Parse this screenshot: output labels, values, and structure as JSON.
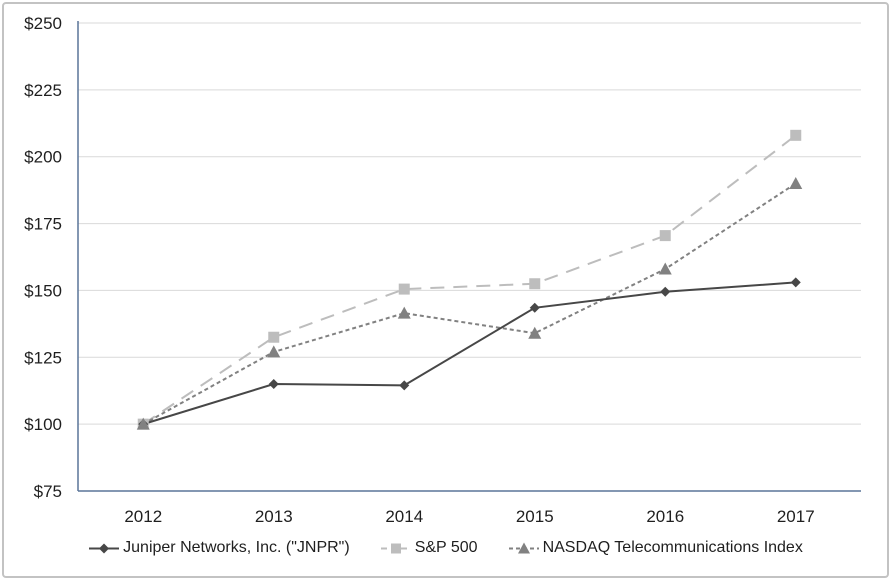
{
  "figure": {
    "background": "#ffffff",
    "border_color": "#c3c3c3"
  },
  "chart_data": {
    "type": "line",
    "title": "",
    "xlabel": "",
    "ylabel": "",
    "categories": [
      "2012",
      "2013",
      "2014",
      "2015",
      "2016",
      "2017"
    ],
    "series": [
      {
        "name": "Juniper Networks, Inc. (\"JNPR\")",
        "values": [
          100,
          115,
          114.5,
          143.5,
          149.5,
          153
        ],
        "color": "#474747",
        "marker": "diamond",
        "dash": "solid"
      },
      {
        "name": "S&P 500",
        "values": [
          100,
          132.5,
          150.5,
          152.5,
          170.5,
          208
        ],
        "color": "#bdbdbd",
        "marker": "square",
        "dash": "long-dash"
      },
      {
        "name": "NASDAQ Telecommunications Index",
        "values": [
          100,
          127,
          141.5,
          134,
          158,
          190
        ],
        "color": "#818181",
        "marker": "triangle",
        "dash": "short-dash"
      }
    ],
    "y_ticks": [
      {
        "label": "$250",
        "value": 250
      },
      {
        "label": "$225",
        "value": 225
      },
      {
        "label": "$200",
        "value": 200
      },
      {
        "label": "$175",
        "value": 175
      },
      {
        "label": "$150",
        "value": 150
      },
      {
        "label": "$125",
        "value": 125
      },
      {
        "label": "$100",
        "value": 100
      },
      {
        "label": "$75",
        "value": 75
      }
    ],
    "ylim": [
      75,
      250
    ],
    "grid": "horizontal-only",
    "legend_position": "bottom",
    "colors": {
      "axis": "#5a7599",
      "gridline": "#d9d9d9",
      "text": "#1f1f1f"
    }
  }
}
